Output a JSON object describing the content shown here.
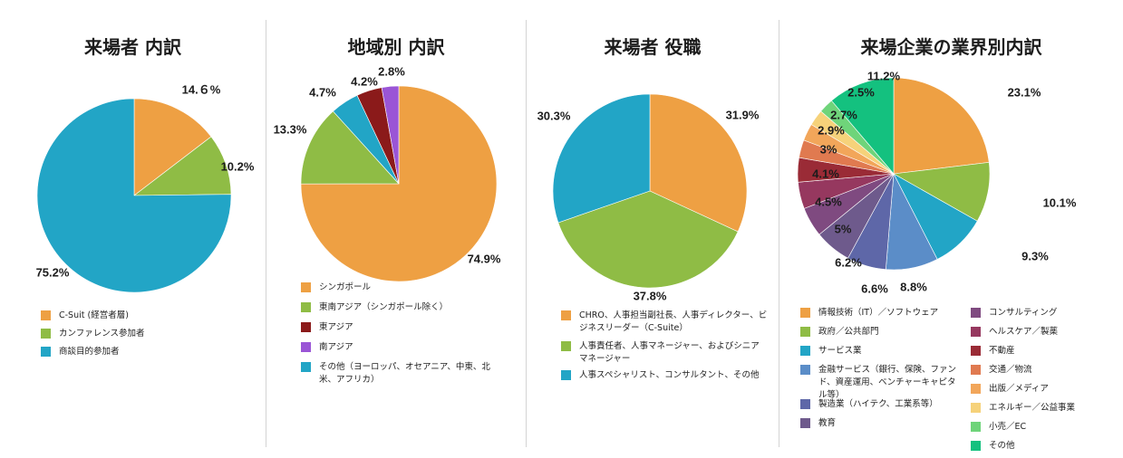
{
  "chart_data": [
    {
      "type": "pie",
      "title": "来場者 内訳",
      "slices": [
        {
          "label": "C-Suit (経営者層)",
          "value": 14.6,
          "value_label": "14.６%",
          "color": "#EEA043"
        },
        {
          "label": "カンファレンス参加者",
          "value": 10.2,
          "value_label": "10.2%",
          "color": "#8FBC45"
        },
        {
          "label": "商談目的参加者",
          "value": 75.2,
          "value_label": "75.2%",
          "color": "#22A5C6"
        }
      ]
    },
    {
      "type": "pie",
      "title": "地域別 内訳",
      "slices": [
        {
          "label": "シンガポール",
          "value": 74.9,
          "value_label": "74.9%",
          "color": "#EEA043"
        },
        {
          "label": "東南アジア（シンガポール除く）",
          "value": 13.3,
          "value_label": "13.3%",
          "color": "#8FBC45"
        },
        {
          "label": "その他（ヨーロッパ、オセアニア、中東、北米、アフリカ）",
          "value": 4.7,
          "value_label": "4.7%",
          "color": "#22A5C6"
        },
        {
          "label": "東アジア",
          "value": 4.2,
          "value_label": "4.2%",
          "color": "#8B1A1A"
        },
        {
          "label": "南アジア",
          "value": 2.8,
          "value_label": "2.8%",
          "color": "#9A55D6"
        }
      ],
      "legend_order": [
        0,
        1,
        3,
        4,
        2
      ]
    },
    {
      "type": "pie",
      "title": "来場者 役職",
      "slices": [
        {
          "label": "CHRO、人事担当副社長、人事ディレクター、ビジネスリーダー（C-Suite）",
          "value": 31.9,
          "value_label": "31.9%",
          "color": "#EEA043"
        },
        {
          "label": "人事責任者、人事マネージャー、およびシニアマネージャー",
          "value": 37.8,
          "value_label": "37.8%",
          "color": "#8FBC45"
        },
        {
          "label": "人事スペシャリスト、コンサルタント、その他",
          "value": 30.3,
          "value_label": "30.3%",
          "color": "#22A5C6"
        }
      ]
    },
    {
      "type": "pie",
      "title": "来場企業の業界別内訳",
      "slices": [
        {
          "label": "情報技術（IT）／ソフトウェア",
          "value": 23.1,
          "value_label": "23.1%",
          "color": "#EEA043"
        },
        {
          "label": "政府／公共部門",
          "value": 10.1,
          "value_label": "10.1%",
          "color": "#8FBC45"
        },
        {
          "label": "サービス業",
          "value": 9.3,
          "value_label": "9.3%",
          "color": "#22A5C6"
        },
        {
          "label": "金融サービス（銀行、保険、ファンド、資産運用、ベンチャーキャピタル等）",
          "value": 8.8,
          "value_label": "8.8%",
          "color": "#5B8DC8"
        },
        {
          "label": "製造業（ハイテク、工業系等）",
          "value": 6.6,
          "value_label": "6.6%",
          "color": "#5E67A8"
        },
        {
          "label": "教育",
          "value": 6.2,
          "value_label": "6.2%",
          "color": "#6E5A8C"
        },
        {
          "label": "コンサルティング",
          "value": 5,
          "value_label": "5%",
          "color": "#7F4A80"
        },
        {
          "label": "ヘルスケア／製薬",
          "value": 4.5,
          "value_label": "4.5%",
          "color": "#96385F"
        },
        {
          "label": "不動産",
          "value": 4.1,
          "value_label": "4.1%",
          "color": "#9A2B36"
        },
        {
          "label": "交通／物流",
          "value": 3,
          "value_label": "3%",
          "color": "#E07A50"
        },
        {
          "label": "出版／メディア",
          "value": 2.9,
          "value_label": "2.9%",
          "color": "#F2A65A"
        },
        {
          "label": "エネルギー／公益事業",
          "value": 2.7,
          "value_label": "2.7%",
          "color": "#F6D27A"
        },
        {
          "label": "小売／EC",
          "value": 2.5,
          "value_label": "2.5%",
          "color": "#6FD47A"
        },
        {
          "label": "その他",
          "value": 11.2,
          "value_label": "11.2%",
          "color": "#14C17F"
        }
      ]
    }
  ]
}
